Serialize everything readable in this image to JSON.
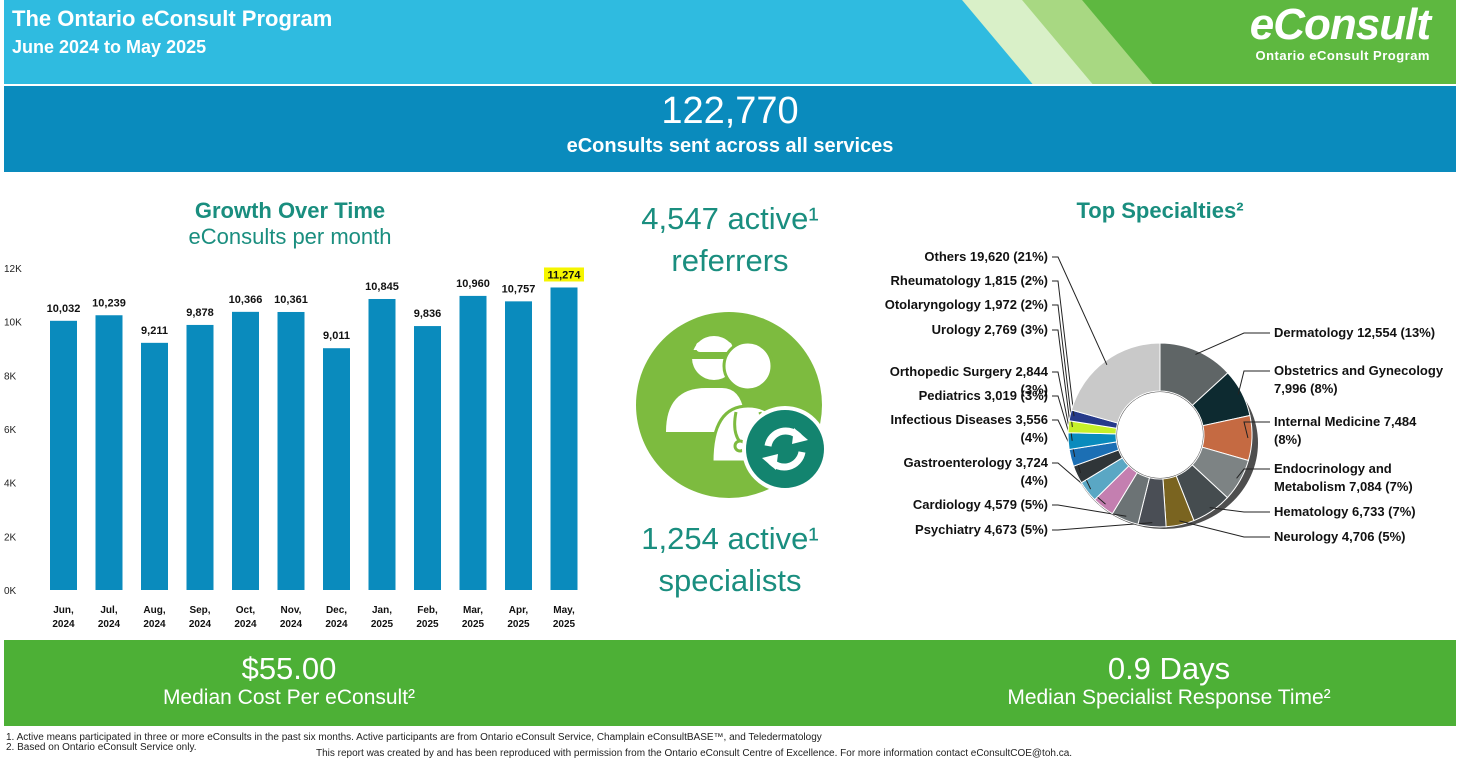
{
  "header": {
    "title": "The Ontario eConsult Program",
    "subtitle": "June 2024 to May 2025",
    "logo_main": "eConsult",
    "logo_sub": "Ontario eConsult Program"
  },
  "banner": {
    "value": "122,770",
    "label": "eConsults sent across all services"
  },
  "growth": {
    "title": "Growth Over Time",
    "subtitle": "eConsults per month"
  },
  "chart_data": {
    "type": "bar",
    "title": "Growth Over Time",
    "subtitle": "eConsults per month",
    "categories": [
      [
        "Jun,",
        "2024"
      ],
      [
        "Jul,",
        "2024"
      ],
      [
        "Aug,",
        "2024"
      ],
      [
        "Sep,",
        "2024"
      ],
      [
        "Oct,",
        "2024"
      ],
      [
        "Nov,",
        "2024"
      ],
      [
        "Dec,",
        "2024"
      ],
      [
        "Jan,",
        "2025"
      ],
      [
        "Feb,",
        "2025"
      ],
      [
        "Mar,",
        "2025"
      ],
      [
        "Apr,",
        "2025"
      ],
      [
        "May,",
        "2025"
      ]
    ],
    "values": [
      10032,
      10239,
      9211,
      9878,
      10366,
      10361,
      9011,
      10845,
      9836,
      10960,
      10757,
      11274
    ],
    "value_labels": [
      "10,032",
      "10,239",
      "9,211",
      "9,878",
      "10,366",
      "10,361",
      "9,011",
      "10,845",
      "9,836",
      "10,960",
      "10,757",
      "11,274"
    ],
    "highlight_index": 11,
    "highlight_color": "#f5f500",
    "bar_color": "#0a8bbd",
    "ylim": [
      0,
      12000
    ],
    "yticks": [
      0,
      2000,
      4000,
      6000,
      8000,
      10000,
      12000
    ],
    "ytick_labels": [
      "0K",
      "2K",
      "4K",
      "6K",
      "8K",
      "10K",
      "12K"
    ],
    "grid": false
  },
  "middle": {
    "referrers_line1": "4,547 active¹",
    "referrers_line2": "referrers",
    "specialists_line1": "1,254 active¹",
    "specialists_line2": "specialists",
    "icon_color": "#7dbb3f",
    "badge_color": "#13846f"
  },
  "specialties": {
    "title": "Top Specialties²",
    "chart_data": {
      "type": "pie",
      "slices": [
        {
          "name": "Dermatology",
          "value": 12554,
          "pct": 13,
          "label": [
            "Dermatology 12,554 (13%)"
          ],
          "color": "#5f6566"
        },
        {
          "name": "Obstetrics and Gynecology",
          "value": 7996,
          "pct": 8,
          "label": [
            "Obstetrics and Gynecology",
            "7,996 (8%)"
          ],
          "color": "#0d2a30"
        },
        {
          "name": "Internal Medicine",
          "value": 7484,
          "pct": 8,
          "label": [
            "Internal Medicine 7,484",
            "(8%)"
          ],
          "color": "#c56a42"
        },
        {
          "name": "Endocrinology and Metabolism",
          "value": 7084,
          "pct": 7,
          "label": [
            "Endocrinology and",
            "Metabolism 7,084 (7%)"
          ],
          "color": "#7d8384"
        },
        {
          "name": "Hematology",
          "value": 6733,
          "pct": 7,
          "label": [
            "Hematology 6,733 (7%)"
          ],
          "color": "#454c4f"
        },
        {
          "name": "Neurology",
          "value": 4706,
          "pct": 5,
          "label": [
            "Neurology 4,706 (5%)"
          ],
          "color": "#7a6420"
        },
        {
          "name": "Psychiatry",
          "value": 4673,
          "pct": 5,
          "label": [
            "Psychiatry 4,673 (5%)"
          ],
          "color": "#4a4e55"
        },
        {
          "name": "Cardiology",
          "value": 4579,
          "pct": 5,
          "label": [
            "Cardiology 4,579 (5%)"
          ],
          "color": "#6c7375"
        },
        {
          "name": "Gastroenterology",
          "value": 3724,
          "pct": 4,
          "label": [
            "Gastroenterology 3,724",
            "(4%)"
          ],
          "color": "#c47fb0"
        },
        {
          "name": "Infectious Diseases",
          "value": 3556,
          "pct": 4,
          "label": [
            "Infectious Diseases 3,556",
            "(4%)"
          ],
          "color": "#5aa7c4"
        },
        {
          "name": "Pediatrics",
          "value": 3019,
          "pct": 3,
          "label": [
            "Pediatrics 3,019 (3%)"
          ],
          "color": "#2f3538"
        },
        {
          "name": "Orthopedic Surgery",
          "value": 2844,
          "pct": 3,
          "label": [
            "Orthopedic Surgery 2,844",
            "(3%)"
          ],
          "color": "#1c6fb4"
        },
        {
          "name": "Urology",
          "value": 2769,
          "pct": 3,
          "label": [
            "Urology 2,769 (3%)"
          ],
          "color": "#0a8bbd"
        },
        {
          "name": "Otolaryngology",
          "value": 1972,
          "pct": 2,
          "label": [
            "Otolaryngology 1,972 (2%)"
          ],
          "color": "#c6f02a"
        },
        {
          "name": "Rheumatology",
          "value": 1815,
          "pct": 2,
          "label": [
            "Rheumatology 1,815 (2%)"
          ],
          "color": "#263a8a"
        },
        {
          "name": "Others",
          "value": 19620,
          "pct": 21,
          "label": [
            "Others 19,620 (21%)"
          ],
          "color": "#c9c9c9"
        }
      ]
    }
  },
  "footer_band": {
    "cost_value": "$55.00",
    "cost_label": "Median Cost Per eConsult²",
    "time_value": "0.9  Days",
    "time_label": "Median Specialist Response Time²"
  },
  "footnotes": {
    "note1": "1. Active means participated in three or more eConsults in the past six months. Active participants are from Ontario eConsult Service, Champlain eConsultBASE™, and Teledermatology",
    "note2": "2. Based on Ontario eConsult Service only.",
    "credit": "This report was created by and has been reproduced with permission from the Ontario eConsult Centre of Excellence. For more information contact eConsultCOE@toh.ca."
  }
}
